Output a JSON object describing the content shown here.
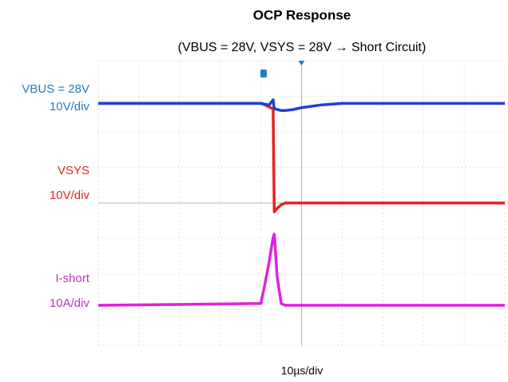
{
  "chart_data": {
    "type": "line",
    "title": "OCP Response",
    "subtitle": "(VBUS = 28V, VSYS = 28V → Short Circuit)",
    "x_label": "10µs/div",
    "xlim": [
      0,
      100
    ],
    "x": [
      0,
      40,
      41,
      42,
      43,
      43.3,
      44,
      45,
      46,
      48,
      50,
      55,
      60,
      100
    ],
    "series": [
      {
        "name": "VSYS",
        "scale": {
          "value": 10,
          "label": "10V/div"
        },
        "color": "#e52222",
        "values": [
          28,
          28,
          27.6,
          27,
          26.5,
          -2.5,
          -1.5,
          -0.5,
          0,
          0,
          0,
          0,
          0,
          0
        ]
      },
      {
        "name": "VBUS = 28V",
        "scale": {
          "value": 10,
          "label": "10V/div"
        },
        "color": "#1f3fd8",
        "label_color": "#1f7fc4",
        "values": [
          28,
          28,
          27.8,
          27.5,
          29,
          26.5,
          26.3,
          26,
          26,
          26.3,
          26.8,
          27.6,
          28,
          28
        ]
      },
      {
        "name": "I-short",
        "scale": {
          "value": 10,
          "label": "10A/div"
        },
        "color": "#e020e0",
        "label_color": "#c030c0",
        "values": [
          0,
          0.5,
          6,
          12,
          19,
          20,
          8,
          0.5,
          0,
          0,
          0,
          0,
          0,
          0
        ]
      }
    ]
  }
}
